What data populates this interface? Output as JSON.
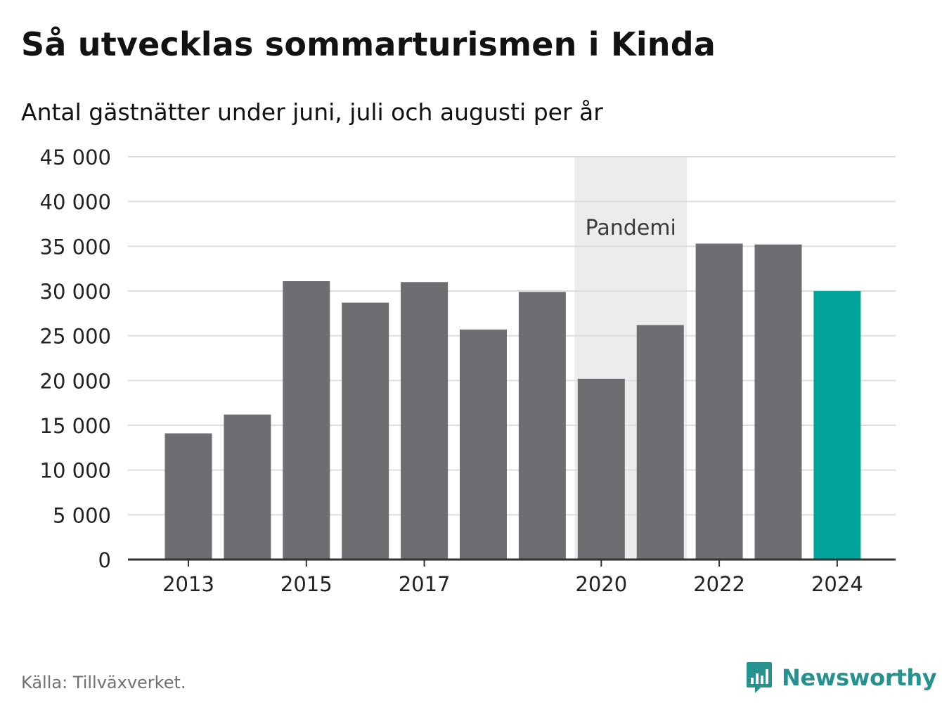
{
  "title": "Så utvecklas sommarturismen i Kinda",
  "subtitle": "Antal gästnätter under juni, juli och augusti per år",
  "source": "Källa: Tillväxverket.",
  "brand": {
    "name": "Newsworthy",
    "icon": "newsworthy-logo-icon",
    "color": "#25928f"
  },
  "chart_data": {
    "type": "bar",
    "categories": [
      "2013",
      "2014",
      "2015",
      "2016",
      "2017",
      "2018",
      "2019",
      "2020",
      "2021",
      "2022",
      "2023",
      "2024"
    ],
    "values": [
      14100,
      16200,
      31100,
      28700,
      31000,
      25700,
      29900,
      20200,
      26200,
      35300,
      35200,
      30000
    ],
    "x_tick_labels": [
      "2013",
      "2015",
      "2017",
      "2020",
      "2022",
      "2024"
    ],
    "y_ticks": [
      0,
      5000,
      10000,
      15000,
      20000,
      25000,
      30000,
      35000,
      40000,
      45000
    ],
    "y_tick_labels": [
      "0",
      "5 000",
      "10 000",
      "15 000",
      "20 000",
      "25 000",
      "30 000",
      "35 000",
      "40 000",
      "45 000"
    ],
    "ylim": [
      0,
      45000
    ],
    "grid": true,
    "colors": {
      "default": "#6e6d72",
      "highlight": "#00a49a",
      "band": "#ececec",
      "grid": "#dddddd",
      "axis": "#333333"
    },
    "highlight_category": "2024",
    "annotation": {
      "label": "Pandemi",
      "from": "2020",
      "to": "2021"
    }
  }
}
